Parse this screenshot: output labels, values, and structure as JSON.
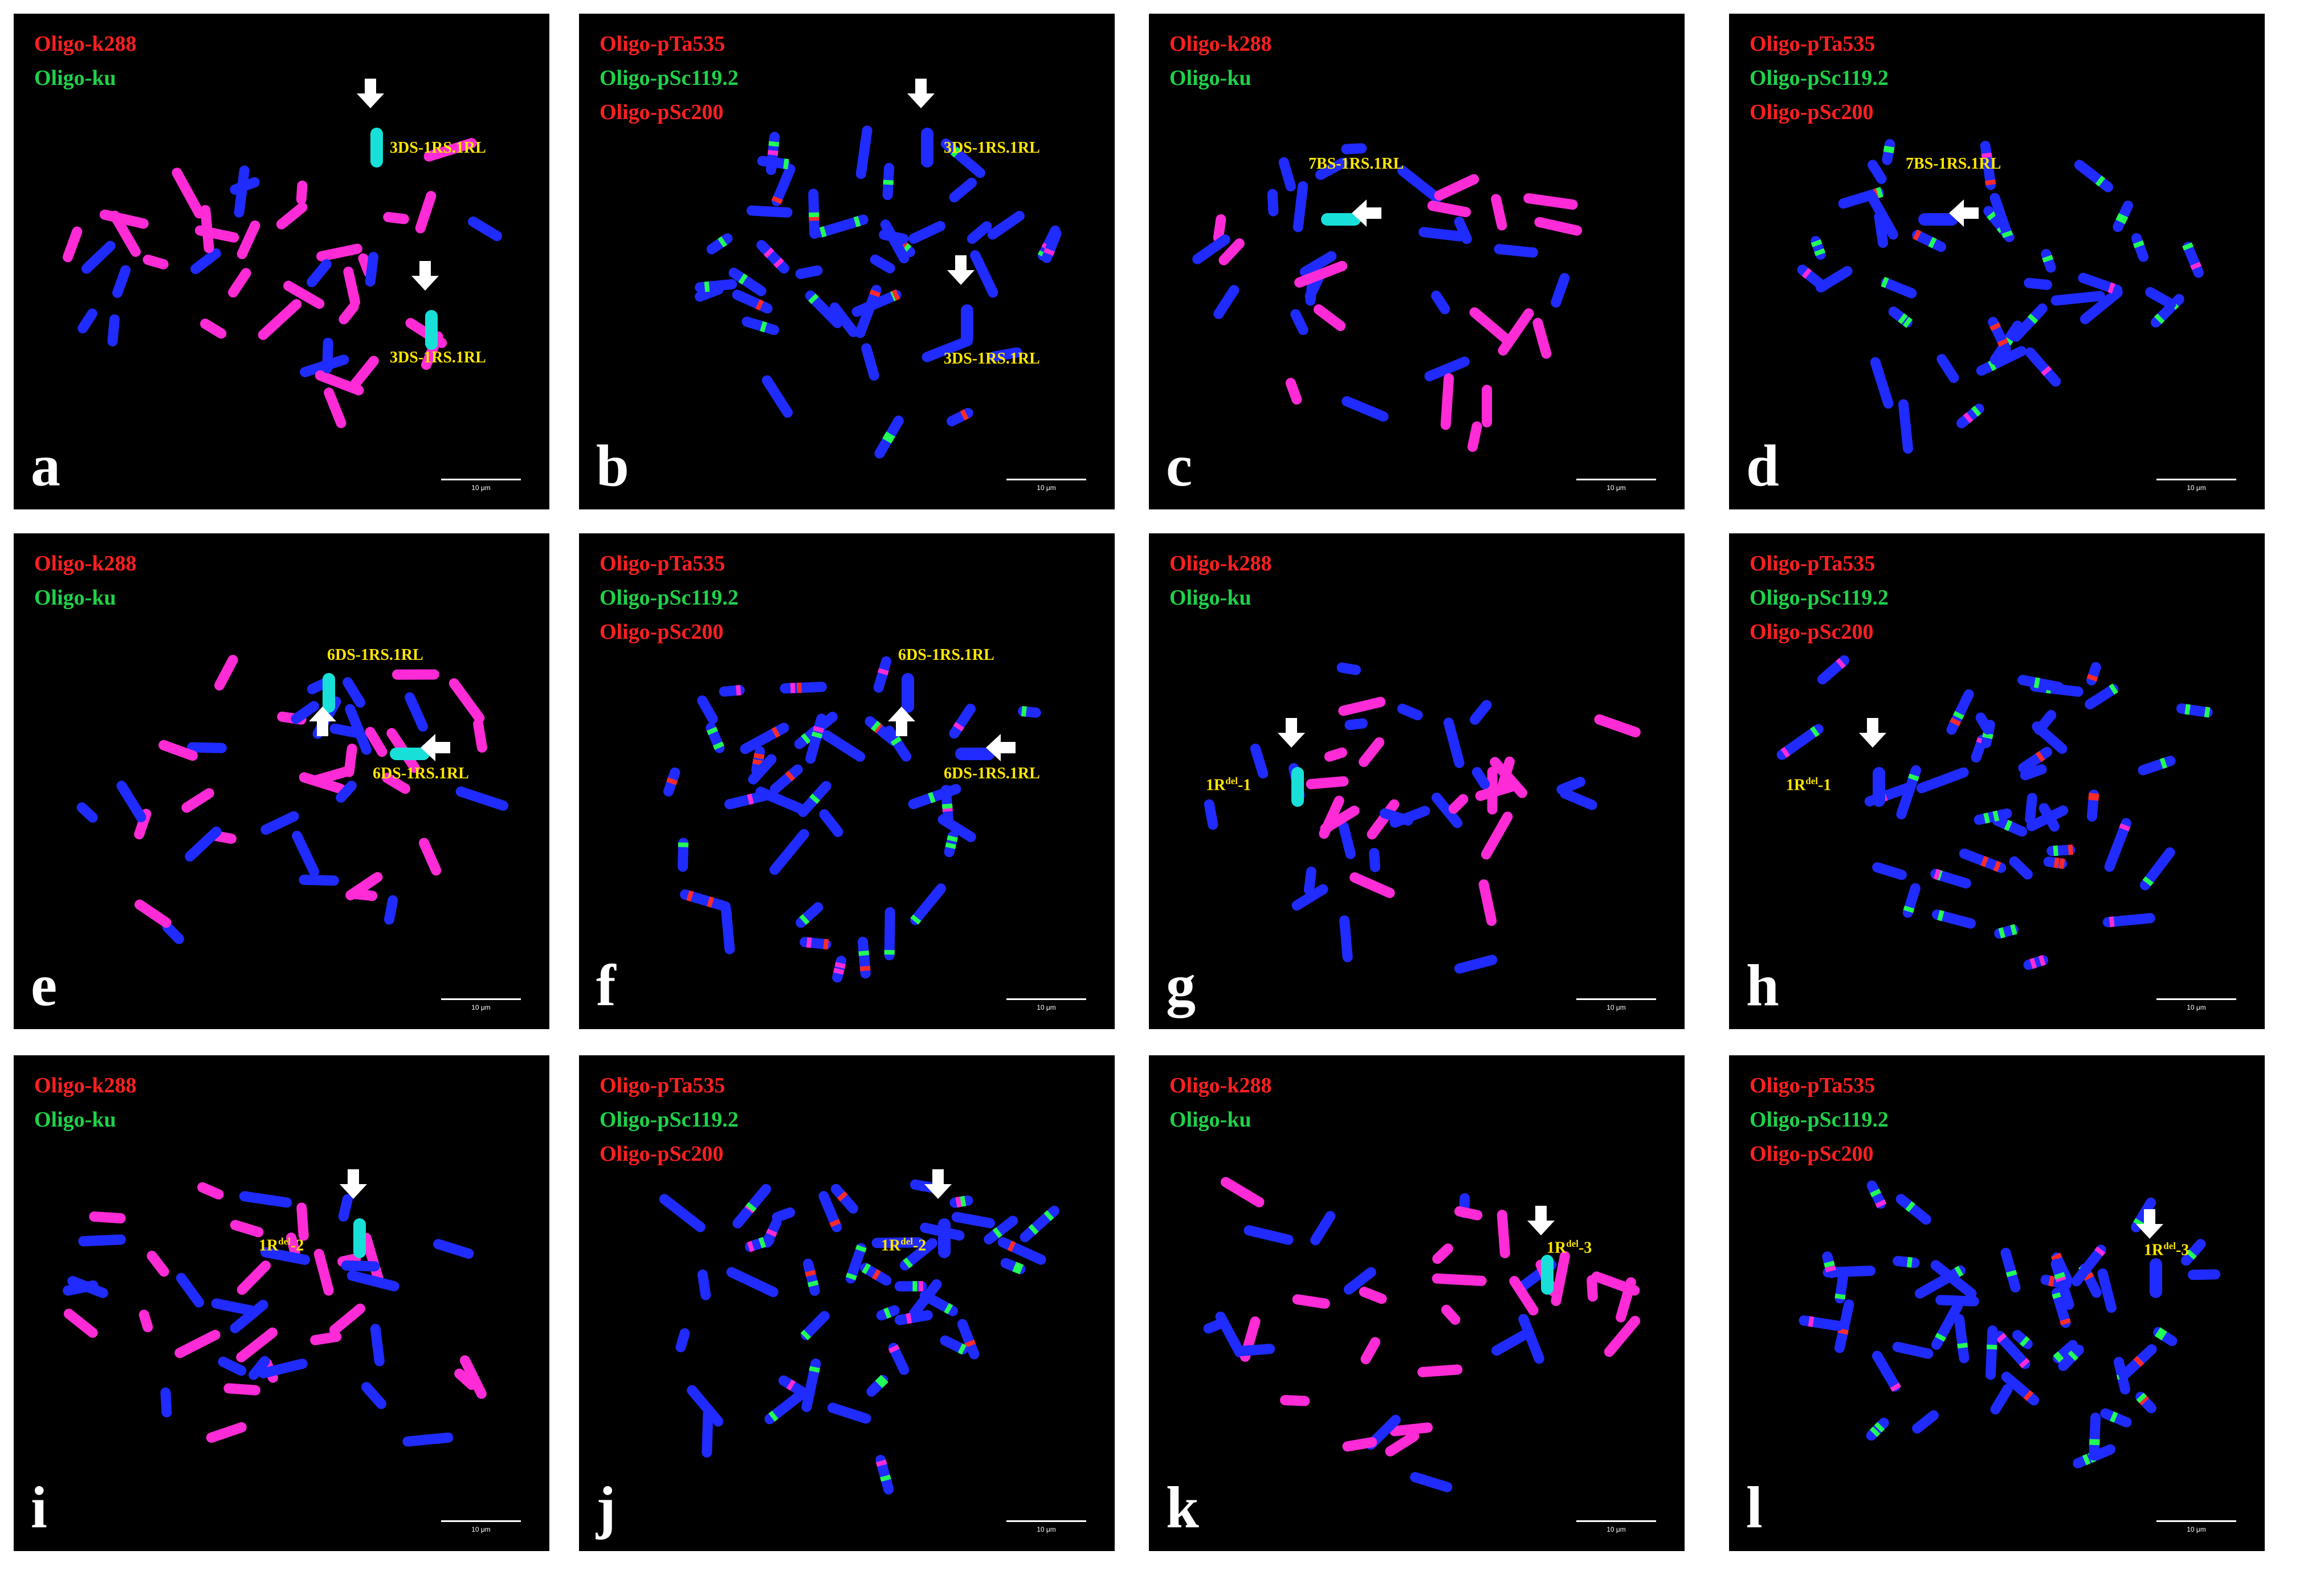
{
  "colors": {
    "background": "#000000",
    "probe_red": "#ff2020",
    "probe_green": "#1fd24a",
    "label_yellow": "#ffe600",
    "chromosome_blue": "#1f2bff",
    "chromosome_magenta": "#ff2bd6",
    "signal_cyan": "#18e0d8",
    "signal_green": "#22ff55",
    "signal_red": "#ff2a2a"
  },
  "scale_text": "10 μm",
  "panels": [
    {
      "letter": "a",
      "probes": [
        {
          "text": "Oligo-k288",
          "color": "red"
        },
        {
          "text": "Oligo-ku",
          "color": "green"
        }
      ],
      "labels": [
        {
          "main": "3DS-1RS.1RL",
          "sup": "",
          "tail": ""
        },
        {
          "main": "3DS-1RS.1RL",
          "sup": "",
          "tail": ""
        }
      ]
    },
    {
      "letter": "b",
      "probes": [
        {
          "text": "Oligo-pTa535",
          "color": "red"
        },
        {
          "text": "Oligo-pSc119.2",
          "color": "green"
        },
        {
          "text": "Oligo-pSc200",
          "color": "red"
        }
      ],
      "labels": [
        {
          "main": "3DS-1RS.1RL",
          "sup": "",
          "tail": ""
        },
        {
          "main": "3DS-1RS.1RL",
          "sup": "",
          "tail": ""
        }
      ]
    },
    {
      "letter": "c",
      "probes": [
        {
          "text": "Oligo-k288",
          "color": "red"
        },
        {
          "text": "Oligo-ku",
          "color": "green"
        }
      ],
      "labels": [
        {
          "main": "7BS-1RS.1RL",
          "sup": "",
          "tail": ""
        }
      ]
    },
    {
      "letter": "d",
      "probes": [
        {
          "text": "Oligo-pTa535",
          "color": "red"
        },
        {
          "text": "Oligo-pSc119.2",
          "color": "green"
        },
        {
          "text": "Oligo-pSc200",
          "color": "red"
        }
      ],
      "labels": [
        {
          "main": "7BS-1RS.1RL",
          "sup": "",
          "tail": ""
        }
      ]
    },
    {
      "letter": "e",
      "probes": [
        {
          "text": "Oligo-k288",
          "color": "red"
        },
        {
          "text": "Oligo-ku",
          "color": "green"
        }
      ],
      "labels": [
        {
          "main": "6DS-1RS.1RL",
          "sup": "",
          "tail": ""
        },
        {
          "main": "6DS-1RS.1RL",
          "sup": "",
          "tail": ""
        }
      ]
    },
    {
      "letter": "f",
      "probes": [
        {
          "text": "Oligo-pTa535",
          "color": "red"
        },
        {
          "text": "Oligo-pSc119.2",
          "color": "green"
        },
        {
          "text": "Oligo-pSc200",
          "color": "red"
        }
      ],
      "labels": [
        {
          "main": "6DS-1RS.1RL",
          "sup": "",
          "tail": ""
        },
        {
          "main": "6DS-1RS.1RL",
          "sup": "",
          "tail": ""
        }
      ]
    },
    {
      "letter": "g",
      "probes": [
        {
          "text": "Oligo-k288",
          "color": "red"
        },
        {
          "text": "Oligo-ku",
          "color": "green"
        }
      ],
      "labels": [
        {
          "main": "1R",
          "sup": "del",
          "tail": "-1"
        }
      ]
    },
    {
      "letter": "h",
      "probes": [
        {
          "text": "Oligo-pTa535",
          "color": "red"
        },
        {
          "text": "Oligo-pSc119.2",
          "color": "green"
        },
        {
          "text": "Oligo-pSc200",
          "color": "red"
        }
      ],
      "labels": [
        {
          "main": "1R",
          "sup": "del",
          "tail": "-1"
        }
      ]
    },
    {
      "letter": "i",
      "probes": [
        {
          "text": "Oligo-k288",
          "color": "red"
        },
        {
          "text": "Oligo-ku",
          "color": "green"
        }
      ],
      "labels": [
        {
          "main": "1R",
          "sup": "del",
          "tail": "-2"
        }
      ]
    },
    {
      "letter": "j",
      "probes": [
        {
          "text": "Oligo-pTa535",
          "color": "red"
        },
        {
          "text": "Oligo-pSc119.2",
          "color": "green"
        },
        {
          "text": "Oligo-pSc200",
          "color": "red"
        }
      ],
      "labels": [
        {
          "main": "1R",
          "sup": "del",
          "tail": "-2"
        }
      ]
    },
    {
      "letter": "k",
      "probes": [
        {
          "text": "Oligo-k288",
          "color": "red"
        },
        {
          "text": "Oligo-ku",
          "color": "green"
        }
      ],
      "labels": [
        {
          "main": "1R",
          "sup": "del",
          "tail": "-3"
        }
      ]
    },
    {
      "letter": "l",
      "probes": [
        {
          "text": "Oligo-pTa535",
          "color": "red"
        },
        {
          "text": "Oligo-pSc119.2",
          "color": "green"
        },
        {
          "text": "Oligo-pSc200",
          "color": "red"
        }
      ],
      "labels": [
        {
          "main": "1R",
          "sup": "del",
          "tail": "-3"
        }
      ]
    }
  ]
}
